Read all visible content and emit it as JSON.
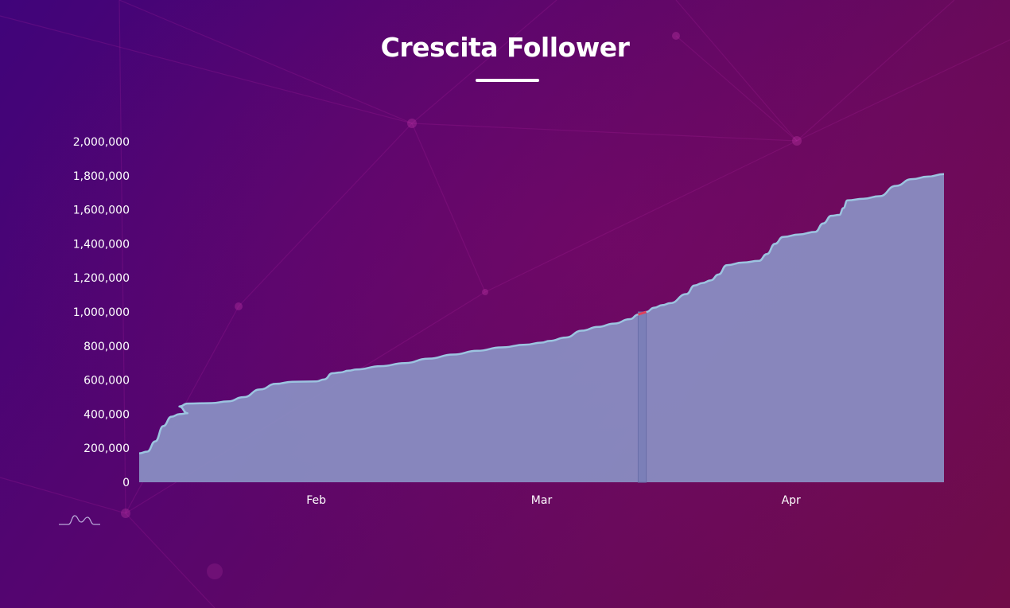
{
  "title": "Crescita Follower",
  "colors": {
    "area_fill": "#8a90c4",
    "line": "#9cc4e0",
    "highlight": "#e0405a"
  },
  "chart_data": {
    "type": "area",
    "title": "Crescita Follower",
    "xlabel": "",
    "ylabel": "",
    "x_tick_labels": [
      "Feb",
      "Mar",
      "Apr"
    ],
    "y_tick_labels": [
      "0",
      "200,000",
      "400,000",
      "600,000",
      "800,000",
      "1,000,000",
      "1,200,000",
      "1,400,000",
      "1,600,000",
      "1,800,000",
      "2,000,000"
    ],
    "ylim": [
      0,
      2000000
    ],
    "grid": false,
    "legend": "none",
    "x_unit": "day offset from Jan 10",
    "x_ticks_day": [
      22,
      50,
      81
    ],
    "x_range_day": [
      0,
      100
    ],
    "series": [
      {
        "points": [
          [
            0,
            170000
          ],
          [
            1,
            180000
          ],
          [
            2,
            240000
          ],
          [
            3,
            330000
          ],
          [
            4,
            385000
          ],
          [
            5,
            400000
          ],
          [
            6,
            405000
          ],
          [
            5,
            445000
          ],
          [
            6,
            462000
          ],
          [
            9,
            465000
          ],
          [
            11,
            475000
          ],
          [
            13,
            500000
          ],
          [
            15,
            545000
          ],
          [
            17,
            578000
          ],
          [
            19,
            590000
          ],
          [
            22,
            592000
          ],
          [
            23,
            604000
          ],
          [
            24,
            640000
          ],
          [
            25,
            645000
          ],
          [
            26,
            655000
          ],
          [
            27,
            662000
          ],
          [
            30,
            682000
          ],
          [
            33,
            700000
          ],
          [
            36,
            726000
          ],
          [
            39,
            750000
          ],
          [
            42,
            772000
          ],
          [
            45,
            792000
          ],
          [
            48,
            808000
          ],
          [
            50,
            820000
          ],
          [
            51,
            830000
          ],
          [
            53,
            850000
          ],
          [
            55,
            890000
          ],
          [
            57,
            912000
          ],
          [
            59,
            932000
          ],
          [
            61,
            958000
          ],
          [
            62,
            985000
          ],
          [
            63,
            1000000
          ],
          [
            64,
            1025000
          ],
          [
            65,
            1040000
          ],
          [
            66,
            1052000
          ],
          [
            68,
            1105000
          ],
          [
            69,
            1155000
          ],
          [
            70,
            1170000
          ],
          [
            71,
            1185000
          ],
          [
            72,
            1220000
          ],
          [
            73,
            1275000
          ],
          [
            75,
            1290000
          ],
          [
            77,
            1300000
          ],
          [
            78,
            1340000
          ],
          [
            79,
            1400000
          ],
          [
            80,
            1440000
          ],
          [
            82,
            1455000
          ],
          [
            84,
            1470000
          ],
          [
            85,
            1520000
          ],
          [
            86,
            1565000
          ],
          [
            87,
            1570000
          ],
          [
            87.5,
            1610000
          ],
          [
            88,
            1655000
          ],
          [
            90,
            1665000
          ],
          [
            92,
            1680000
          ],
          [
            94,
            1740000
          ],
          [
            96,
            1780000
          ],
          [
            98,
            1795000
          ],
          [
            100,
            1810000
          ]
        ]
      }
    ],
    "highlight_range_day": [
      62,
      63
    ]
  }
}
